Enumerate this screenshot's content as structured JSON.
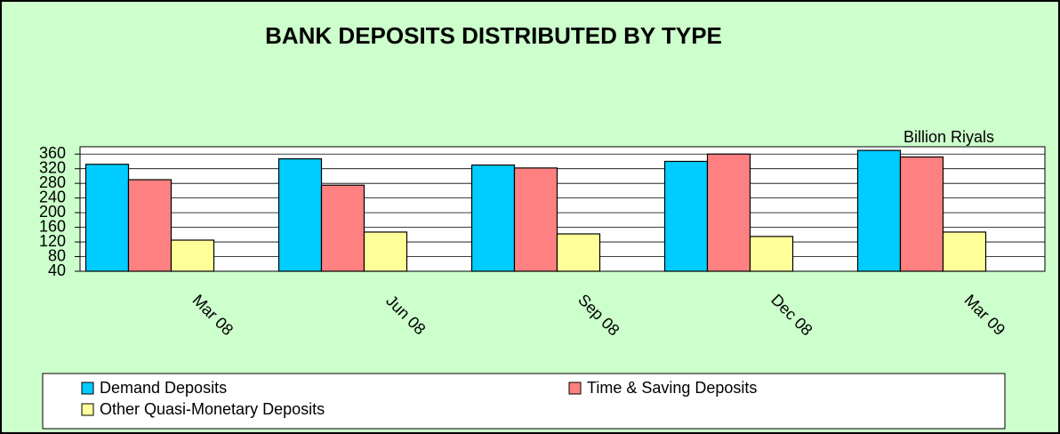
{
  "chart_data": {
    "type": "bar",
    "title": "BANK DEPOSITS DISTRIBUTED BY TYPE",
    "unit_label": "Billion Riyals",
    "categories": [
      "Mar 08",
      "Jun 08",
      "Sep 08",
      "Dec 08",
      "Mar 09"
    ],
    "series": [
      {
        "name": "Demand Deposits",
        "color": "#00ccff",
        "values": [
          332,
          347,
          330,
          340,
          370
        ]
      },
      {
        "name": "Time & Saving Deposits",
        "color": "#ff8080",
        "values": [
          290,
          275,
          322,
          360,
          352
        ]
      },
      {
        "name": "Other Quasi-Monetary Deposits",
        "color": "#ffff99",
        "values": [
          125,
          147,
          142,
          135,
          147
        ]
      }
    ],
    "ylim": [
      40,
      380
    ],
    "yticks": [
      40,
      80,
      120,
      160,
      200,
      240,
      280,
      320,
      360
    ],
    "grid": true
  }
}
